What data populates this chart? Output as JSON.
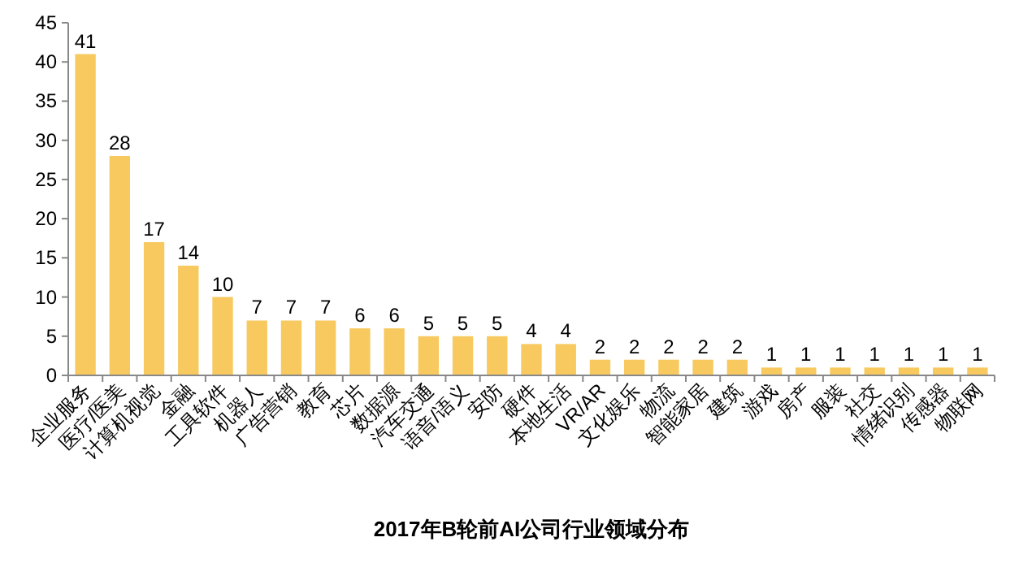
{
  "chart_data": {
    "type": "bar",
    "title": "2017年B轮前AI公司行业领域分布",
    "categories": [
      "企业服务",
      "医疗/医美",
      "计算机视觉",
      "金融",
      "工具软件",
      "机器人",
      "广告营销",
      "教育",
      "芯片",
      "数据源",
      "汽车交通",
      "语音/语义",
      "安防",
      "硬件",
      "本地生活",
      "VR/AR",
      "文化娱乐",
      "物流",
      "智能家居",
      "建筑",
      "游戏",
      "房产",
      "服装",
      "社交",
      "情绪识别",
      "传感器",
      "物联网"
    ],
    "values": [
      41,
      28,
      17,
      14,
      10,
      7,
      7,
      7,
      6,
      6,
      5,
      5,
      5,
      4,
      4,
      2,
      2,
      2,
      2,
      2,
      1,
      1,
      1,
      1,
      1,
      1,
      1
    ],
    "color": "#f7c95e",
    "ylim": [
      0,
      45
    ],
    "yticks": [
      0,
      5,
      10,
      15,
      20,
      25,
      30,
      35,
      40,
      45
    ],
    "data_labels": true,
    "grid": false
  }
}
